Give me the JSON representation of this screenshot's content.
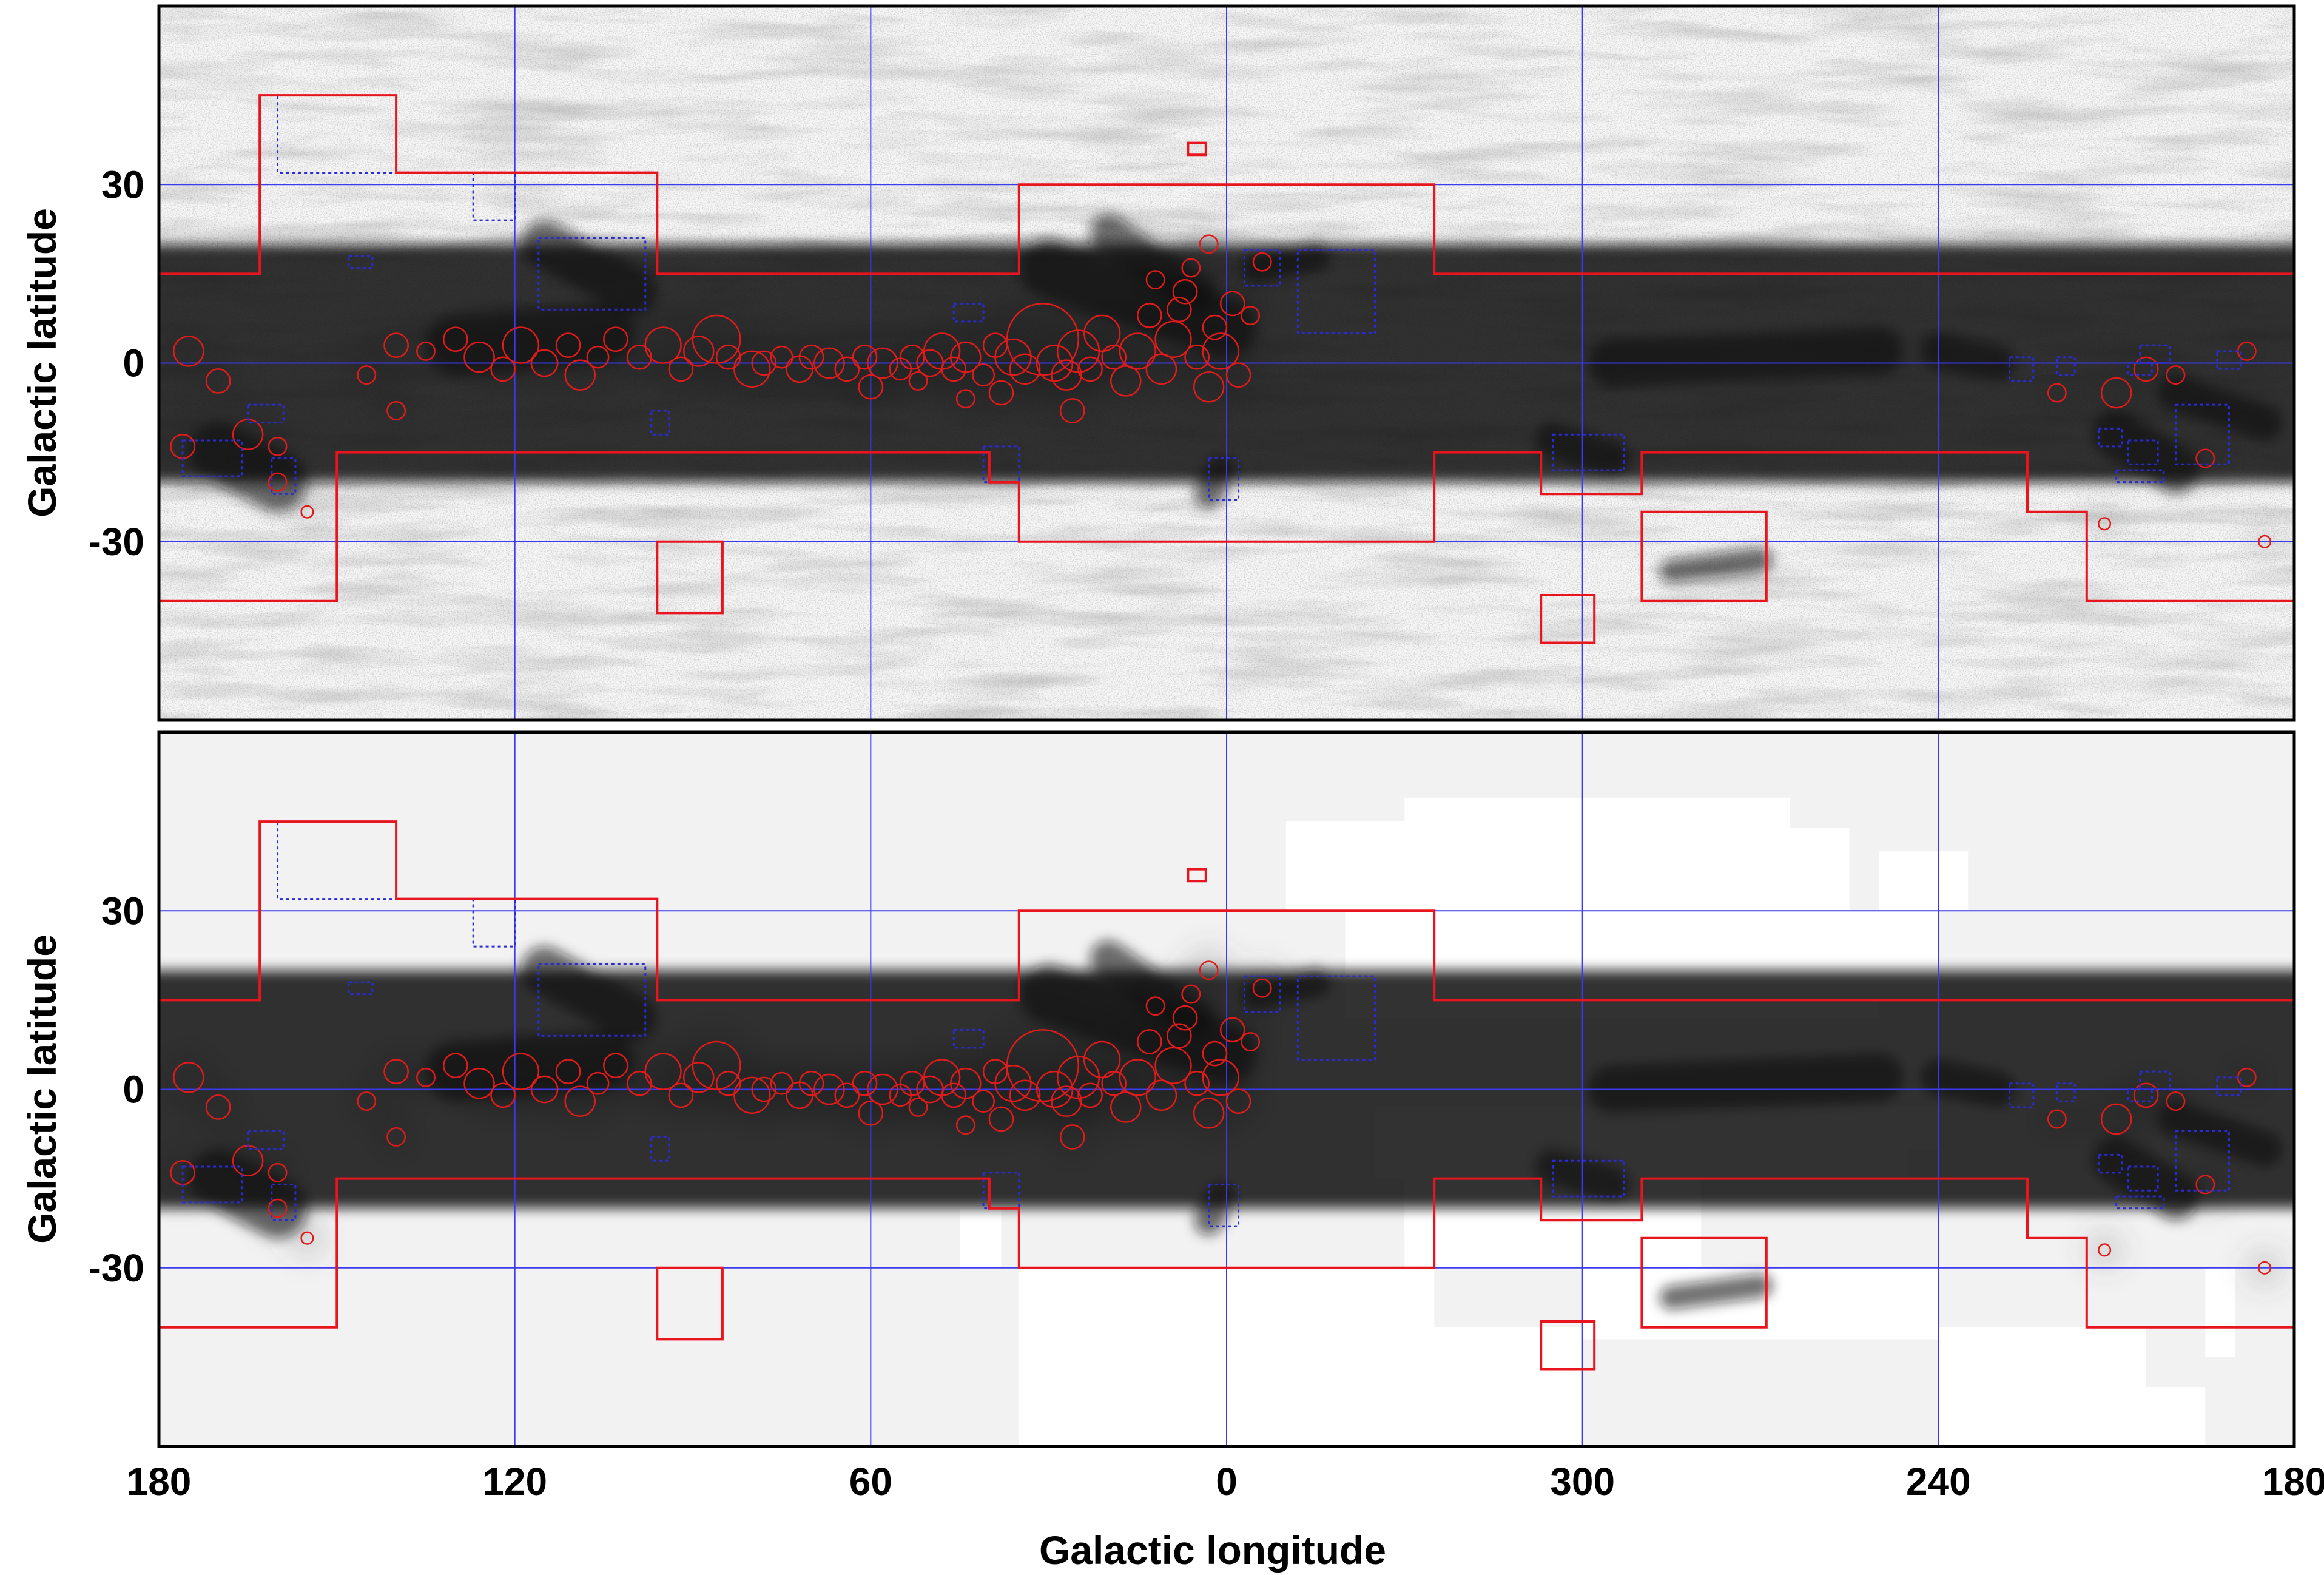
{
  "figure": {
    "xlabel": "Galactic longitude",
    "ylabel_top": "Galactic latitude",
    "ylabel_bottom": "Galactic latitude",
    "x_ticks": [
      "180",
      "120",
      "60",
      "0",
      "300",
      "240",
      "180"
    ],
    "x_tick_values": [
      180,
      120,
      60,
      0,
      -60,
      -120,
      -180
    ],
    "y_ticks": [
      "30",
      "0",
      "-30"
    ],
    "y_tick_values": [
      30,
      0,
      -30
    ],
    "l_range": [
      180,
      -180
    ],
    "b_range": [
      -60,
      60
    ],
    "colors": {
      "grid": "#3a3af0",
      "survey_boundary": "#e8141e",
      "dashed_region": "#2a2ad8",
      "cloud_markers": "#e01b1b",
      "dust_dark": "#111111",
      "mask_light": "#f2f2f2"
    }
  },
  "panels": [
    {
      "id": "top",
      "description_key": "extinction map",
      "masked": false
    },
    {
      "id": "bottom",
      "description_key": "cloud-decomposition map",
      "masked": true
    }
  ],
  "survey_polygons": [
    {
      "name": "main-north",
      "points": [
        [
          180,
          15
        ],
        [
          163,
          15
        ],
        [
          163,
          45
        ],
        [
          140,
          45
        ],
        [
          140,
          32
        ],
        [
          96,
          32
        ],
        [
          96,
          15
        ],
        [
          35,
          15
        ],
        [
          35,
          30
        ],
        [
          -35,
          30
        ],
        [
          -35,
          15
        ],
        [
          -180,
          15
        ]
      ]
    },
    {
      "name": "main-south",
      "points": [
        [
          180,
          -40
        ],
        [
          150,
          -40
        ],
        [
          150,
          -15
        ],
        [
          40,
          -15
        ],
        [
          40,
          -20
        ],
        [
          35,
          -20
        ],
        [
          35,
          -30
        ],
        [
          -35,
          -30
        ],
        [
          -35,
          -15
        ],
        [
          -53,
          -15
        ],
        [
          -53,
          -22
        ],
        [
          -70,
          -22
        ],
        [
          -70,
          -15
        ],
        [
          -135,
          -15
        ],
        [
          -135,
          -25
        ],
        [
          -145,
          -25
        ],
        [
          -145,
          -40
        ],
        [
          -180,
          -40
        ]
      ]
    },
    {
      "name": "box-l95-b-37",
      "points": [
        [
          96,
          -30
        ],
        [
          85,
          -30
        ],
        [
          85,
          -42
        ],
        [
          96,
          -42
        ]
      ]
    },
    {
      "name": "box-l280-b-33",
      "points": [
        [
          -70,
          -25
        ],
        [
          -91,
          -25
        ],
        [
          -91,
          -40
        ],
        [
          -70,
          -40
        ]
      ]
    },
    {
      "name": "box-l302-b-43",
      "points": [
        [
          -53,
          -39
        ],
        [
          -62,
          -39
        ],
        [
          -62,
          -47
        ],
        [
          -53,
          -47
        ]
      ]
    },
    {
      "name": "box-l6-b36",
      "points": [
        [
          6.5,
          37
        ],
        [
          3.5,
          37
        ],
        [
          3.5,
          35
        ],
        [
          6.5,
          35
        ]
      ]
    }
  ],
  "dashed_regions": [
    [
      160,
      45,
      140,
      32
    ],
    [
      127,
      32,
      120,
      24
    ],
    [
      116,
      21,
      98,
      9
    ],
    [
      148,
      18,
      144,
      16
    ],
    [
      165,
      -7,
      159,
      -10
    ],
    [
      176,
      -13,
      166,
      -19
    ],
    [
      161,
      -16,
      157,
      -22
    ],
    [
      97,
      -8,
      94,
      -12
    ],
    [
      46,
      10,
      41,
      7
    ],
    [
      41,
      -14,
      35,
      -20
    ],
    [
      3,
      -16,
      -2,
      -23
    ],
    [
      -3,
      19,
      -9,
      13
    ],
    [
      -12,
      19,
      -25,
      5
    ],
    [
      -55,
      -12,
      -67,
      -18
    ],
    [
      -132,
      1,
      -136,
      -3
    ],
    [
      -140,
      1,
      -143,
      -2
    ],
    [
      -147,
      -11,
      -151,
      -14
    ],
    [
      -152,
      -13,
      -157,
      -17
    ],
    [
      -150,
      -18,
      -158,
      -20
    ],
    [
      -154,
      3,
      -159,
      0
    ],
    [
      -167,
      2,
      -171,
      -1
    ],
    [
      -160,
      -7,
      -169,
      -17
    ],
    [
      -152,
      0,
      -156,
      -2
    ]
  ],
  "clouds": [
    [
      175,
      2,
      2.5
    ],
    [
      170,
      -3,
      2
    ],
    [
      165,
      -12,
      2.5
    ],
    [
      176,
      -14,
      2
    ],
    [
      160,
      -20,
      1.5
    ],
    [
      155,
      -25,
      1
    ],
    [
      145,
      -2,
      1.5
    ],
    [
      140,
      3,
      2
    ],
    [
      135,
      2,
      1.5
    ],
    [
      130,
      4,
      2
    ],
    [
      126,
      1,
      2.5
    ],
    [
      122,
      -1,
      2
    ],
    [
      119,
      3,
      3
    ],
    [
      115,
      0,
      2.2
    ],
    [
      111,
      3,
      2
    ],
    [
      109,
      -2,
      2.5
    ],
    [
      106,
      1,
      1.8
    ],
    [
      103,
      4,
      2
    ],
    [
      99,
      1,
      2
    ],
    [
      95,
      3,
      3
    ],
    [
      92,
      -1,
      2
    ],
    [
      89,
      2,
      2.5
    ],
    [
      86,
      4,
      4
    ],
    [
      84,
      1,
      2
    ],
    [
      80,
      -1,
      3
    ],
    [
      78,
      0,
      2
    ],
    [
      75,
      1,
      1.8
    ],
    [
      72,
      -1,
      2.2
    ],
    [
      70,
      1,
      2
    ],
    [
      67,
      0,
      2.5
    ],
    [
      64,
      -1,
      2
    ],
    [
      61,
      1,
      2
    ],
    [
      58,
      0,
      2.5
    ],
    [
      55,
      -1,
      1.8
    ],
    [
      53,
      1,
      2
    ],
    [
      50,
      0,
      2.2
    ],
    [
      48,
      2,
      3
    ],
    [
      46,
      -1,
      2
    ],
    [
      44,
      1,
      2.5
    ],
    [
      41,
      -2,
      1.8
    ],
    [
      39,
      3,
      2
    ],
    [
      36,
      1,
      3
    ],
    [
      34,
      -1,
      2.5
    ],
    [
      31,
      4,
      6
    ],
    [
      29,
      0,
      3
    ],
    [
      27,
      -2,
      2.5
    ],
    [
      25,
      2,
      3.5
    ],
    [
      23,
      -1,
      2
    ],
    [
      21,
      5,
      3
    ],
    [
      19,
      1,
      2
    ],
    [
      17,
      -3,
      2.5
    ],
    [
      15,
      2,
      3
    ],
    [
      13,
      8,
      2
    ],
    [
      11,
      -1,
      2.5
    ],
    [
      9,
      4,
      3
    ],
    [
      7,
      12,
      2
    ],
    [
      5,
      1,
      2
    ],
    [
      3,
      -4,
      2.5
    ],
    [
      1,
      2,
      3
    ],
    [
      -1,
      10,
      2
    ],
    [
      -2,
      -2,
      2
    ],
    [
      3,
      20,
      1.5
    ],
    [
      6,
      16,
      1.5
    ],
    [
      8,
      9,
      2
    ],
    [
      12,
      14,
      1.5
    ],
    [
      2,
      6,
      2
    ],
    [
      -4,
      8,
      1.5
    ],
    [
      -6,
      17,
      1.5
    ],
    [
      38,
      -5,
      2
    ],
    [
      52,
      -3,
      1.5
    ],
    [
      60,
      -4,
      2
    ],
    [
      44,
      -6,
      1.5
    ],
    [
      26,
      -8,
      2
    ],
    [
      140,
      -8,
      1.5
    ],
    [
      160,
      -14,
      1.5
    ],
    [
      -150,
      -5,
      2.5
    ],
    [
      -155,
      -1,
      2
    ],
    [
      -160,
      -2,
      1.5
    ],
    [
      -165,
      -16,
      1.5
    ],
    [
      -172,
      2,
      1.5
    ],
    [
      -140,
      -5,
      1.5
    ],
    [
      -148,
      -27,
      1
    ],
    [
      -175,
      -30,
      1
    ]
  ],
  "dust_lanes": [
    [
      -180,
      0,
      180,
      0,
      40
    ],
    [
      0,
      6,
      30,
      16,
      10
    ],
    [
      5,
      12,
      20,
      22,
      6
    ],
    [
      -5,
      16,
      -15,
      18,
      5
    ],
    [
      130,
      3,
      105,
      5,
      10
    ],
    [
      170,
      -15,
      160,
      -20,
      10
    ],
    [
      -150,
      -12,
      -160,
      -18,
      8
    ],
    [
      -55,
      -13,
      -65,
      -16,
      6
    ],
    [
      1,
      -18,
      3,
      -22,
      5
    ],
    [
      -90,
      -33,
      -75,
      -35,
      4
    ],
    [
      -160,
      -5,
      -175,
      -10,
      6
    ],
    [
      115,
      20,
      100,
      12,
      8
    ],
    [
      -130,
      0,
      -120,
      2,
      6
    ],
    [
      -65,
      0,
      -110,
      2,
      8
    ]
  ],
  "bottom_mask_blocks": [
    [
      -30,
      49,
      -95,
      30
    ],
    [
      -20,
      30,
      -110,
      12
    ],
    [
      -95,
      44,
      -105,
      30
    ],
    [
      -110,
      40,
      -125,
      30
    ],
    [
      -110,
      30,
      -120,
      15
    ],
    [
      -30,
      -3,
      -80,
      -30
    ],
    [
      -80,
      -3,
      -115,
      -15
    ],
    [
      -25,
      -3,
      -35,
      -15
    ],
    [
      -115,
      -3,
      -120,
      -10
    ],
    [
      35,
      -30,
      -35,
      -60
    ],
    [
      -35,
      -40,
      -60,
      -60
    ],
    [
      -60,
      -30,
      -120,
      -42
    ],
    [
      -120,
      -40,
      -155,
      -60
    ],
    [
      -30,
      -12,
      -35,
      -25
    ],
    [
      -10,
      30,
      -30,
      45
    ],
    [
      38,
      -20,
      45,
      -30
    ],
    [
      -155,
      -50,
      -165,
      -60
    ],
    [
      -165,
      -30,
      -170,
      -45
    ]
  ]
}
